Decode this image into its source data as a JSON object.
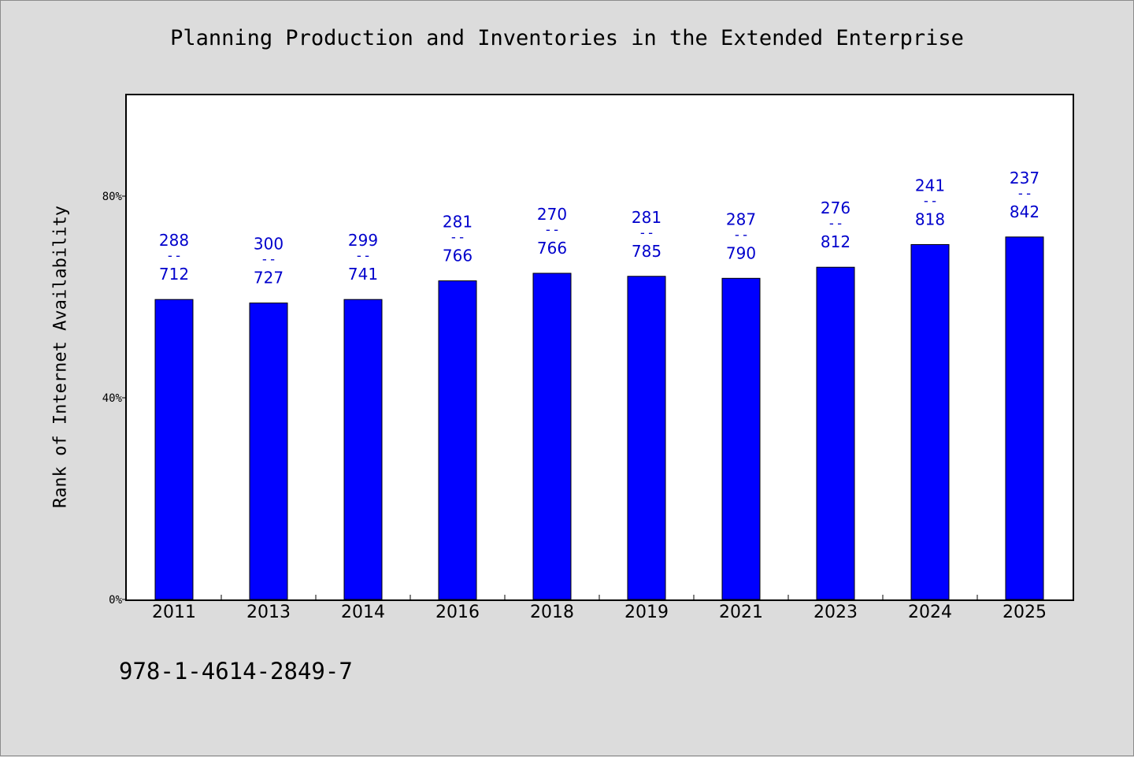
{
  "chart_data": {
    "type": "bar",
    "title": "Planning Production and Inventories in the Extended Enterprise",
    "xlabel": "",
    "ylabel": "Rank of Internet Availability",
    "categories": [
      "2011",
      "2013",
      "2014",
      "2016",
      "2018",
      "2019",
      "2021",
      "2023",
      "2024",
      "2025"
    ],
    "values": [
      59.5,
      58.8,
      59.5,
      63.2,
      64.7,
      64.1,
      63.7,
      65.9,
      70.4,
      71.9
    ],
    "value_unit": "%",
    "label_top": [
      "288",
      "300",
      "299",
      "281",
      "270",
      "281",
      "287",
      "276",
      "241",
      "237"
    ],
    "label_bottom": [
      "712",
      "727",
      "741",
      "766",
      "766",
      "785",
      "790",
      "812",
      "818",
      "842"
    ],
    "label_separator": "--",
    "ylim": [
      0,
      100
    ],
    "yticks": [
      0,
      40,
      80
    ],
    "ytick_labels": [
      "0%",
      "40%",
      "80%"
    ],
    "grid": false,
    "legend": "none",
    "colors": {
      "bar_fill": "#0000ff",
      "bar_stroke": "#000000",
      "data_label": "#0000cc",
      "plot_background": "#ffffff",
      "page_background": "#dcdcdc"
    }
  },
  "footer": {
    "code": "978-1-4614-2849-7"
  }
}
